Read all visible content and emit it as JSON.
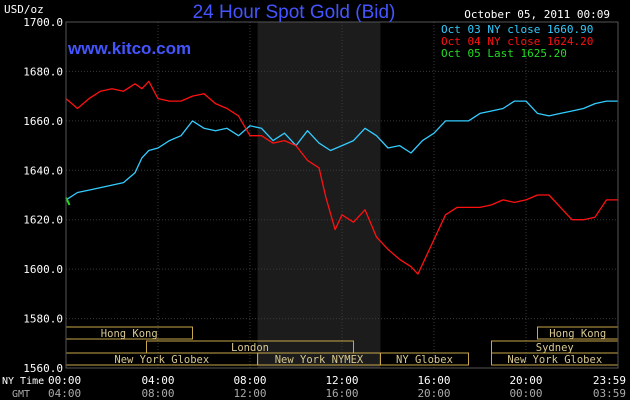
{
  "chart_data": {
    "type": "line",
    "title": "24 Hour Spot Gold (Bid)",
    "source": "www.kitco.com",
    "date_label": "October 05, 2011 00:09",
    "ylabel": "USD/oz",
    "ylim": [
      1560,
      1700
    ],
    "y_ticks": [
      "1560.0",
      "1580.0",
      "1600.0",
      "1620.0",
      "1640.0",
      "1660.0",
      "1680.0",
      "1700.0"
    ],
    "xlim": [
      0,
      24
    ],
    "x_ticks": [
      0,
      4,
      8,
      12,
      16,
      20,
      24
    ],
    "x_row_label_ny": "NY Time",
    "x_row_label_gmt": "GMT",
    "x_tick_labels_ny": [
      "00:00",
      "04:00",
      "08:00",
      "12:00",
      "16:00",
      "20:00",
      "23:59"
    ],
    "x_tick_labels_gmt": [
      "04:00",
      "08:00",
      "12:00",
      "16:00",
      "20:00",
      "00:00",
      "03:59"
    ],
    "shaded_region": [
      8.33,
      13.67
    ],
    "grid": true,
    "legend_position": "top-right",
    "series": [
      {
        "name": "Oct 03 NY close 1660.90",
        "color": "#33ccff",
        "x": [
          0,
          0.5,
          1.0,
          1.5,
          2.0,
          2.5,
          3.0,
          3.3,
          3.6,
          4.0,
          4.5,
          5.0,
          5.5,
          6.0,
          6.5,
          7.0,
          7.5,
          8.0,
          8.5,
          9.0,
          9.5,
          10.0,
          10.5,
          11.0,
          11.5,
          12.0,
          12.5,
          13.0,
          13.5,
          14.0,
          14.5,
          15.0,
          15.5,
          16.0,
          16.5,
          17.0,
          17.5,
          18.0,
          18.5,
          19.0,
          19.5,
          20.0,
          20.5,
          21.0,
          21.5,
          22.0,
          22.5,
          23.0,
          23.5,
          23.98
        ],
        "values": [
          1628,
          1631,
          1632,
          1633,
          1634,
          1635,
          1639,
          1645,
          1648,
          1649,
          1652,
          1654,
          1660,
          1657,
          1656,
          1657,
          1654,
          1658,
          1657,
          1652,
          1655,
          1650,
          1656,
          1651,
          1648,
          1650,
          1652,
          1657,
          1654,
          1649,
          1650,
          1647,
          1652,
          1655,
          1660,
          1660,
          1660,
          1663,
          1664,
          1665,
          1668,
          1668,
          1663,
          1662,
          1663,
          1664,
          1665,
          1667,
          1668,
          1668
        ]
      },
      {
        "name": "Oct 04 NY close 1624.20",
        "color": "#ff1111",
        "x": [
          0,
          0.5,
          1.0,
          1.5,
          2.0,
          2.5,
          3.0,
          3.3,
          3.6,
          4.0,
          4.5,
          5.0,
          5.5,
          6.0,
          6.5,
          7.0,
          7.5,
          8.0,
          8.5,
          9.0,
          9.5,
          10.0,
          10.5,
          11.0,
          11.3,
          11.7,
          12.0,
          12.5,
          13.0,
          13.5,
          14.0,
          14.5,
          15.0,
          15.3,
          15.6,
          16.0,
          16.5,
          17.0,
          17.5,
          18.0,
          18.5,
          19.0,
          19.5,
          20.0,
          20.5,
          21.0,
          21.5,
          22.0,
          22.5,
          23.0,
          23.5,
          23.98
        ],
        "values": [
          1669,
          1665,
          1669,
          1672,
          1673,
          1672,
          1675,
          1673,
          1676,
          1669,
          1668,
          1668,
          1670,
          1671,
          1667,
          1665,
          1662,
          1654,
          1654,
          1651,
          1652,
          1650,
          1644,
          1641,
          1629,
          1616,
          1622,
          1619,
          1624,
          1613,
          1608,
          1604,
          1601,
          1598,
          1604,
          1612,
          1622,
          1625,
          1625,
          1625,
          1626,
          1628,
          1627,
          1628,
          1630,
          1630,
          1625,
          1620,
          1620,
          1621,
          1628,
          1628
        ]
      },
      {
        "name": "Oct 05 Last 1625.20",
        "color": "#22dd22",
        "x": [
          0,
          0.15
        ],
        "values": [
          1629,
          1626
        ]
      }
    ],
    "sessions": [
      {
        "label": "Hong Kong",
        "row": 0,
        "start": 0,
        "end": 5.5
      },
      {
        "label": "London",
        "row": 1,
        "start": 3.5,
        "end": 12.5
      },
      {
        "label": "New York Globex",
        "row": 2,
        "start": 0,
        "end": 8.33
      },
      {
        "label": "New York NYMEX",
        "row": 2,
        "start": 8.33,
        "end": 13.67
      },
      {
        "label": "NY Globex",
        "row": 2,
        "start": 13.67,
        "end": 17.5
      },
      {
        "label": "Hong Kong",
        "row": 0,
        "start": 20.5,
        "end": 24
      },
      {
        "label": "Sydney",
        "row": 1,
        "start": 18.5,
        "end": 24
      },
      {
        "label": "New York Globex",
        "row": 2,
        "start": 18.5,
        "end": 24
      }
    ]
  }
}
